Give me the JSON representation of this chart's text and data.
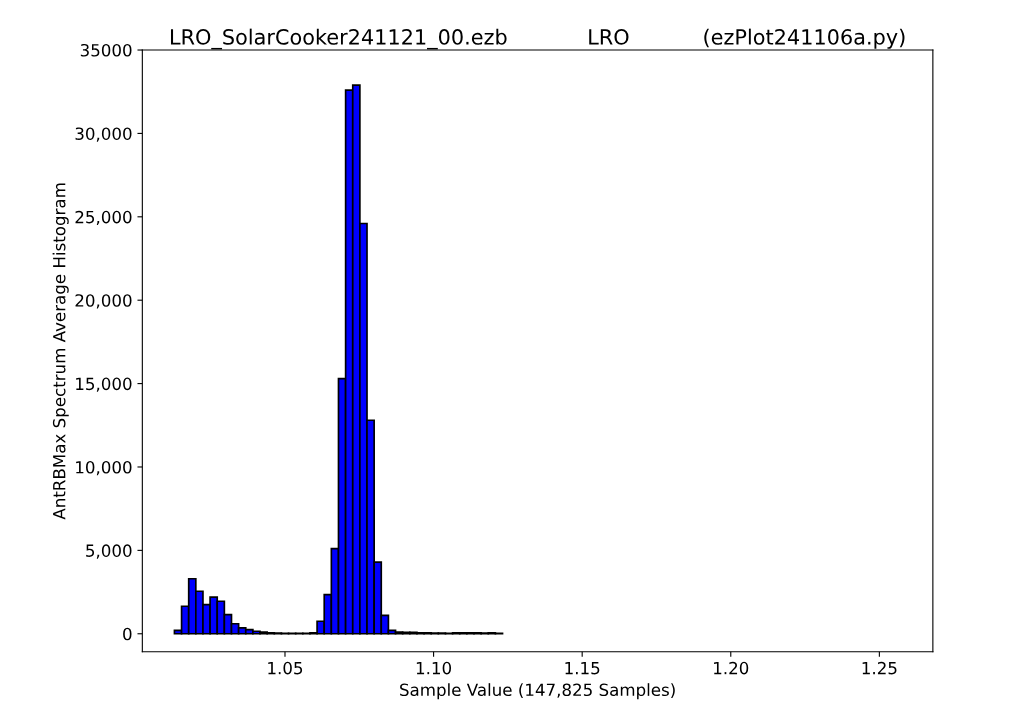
{
  "chart_data": {
    "type": "histogram",
    "title": "LRO_SolarCooker241121_00.ezb            LRO           (ezPlot241106a.py)",
    "xlabel": "Sample Value (147,825 Samples)",
    "ylabel": "AntRBMax Spectrum Average Histogram",
    "bins": [
      1.0128,
      1.0152,
      1.0176,
      1.02,
      1.0224,
      1.0248,
      1.0272,
      1.0296,
      1.032,
      1.0344,
      1.0368,
      1.0392,
      1.0416,
      1.044,
      1.0464,
      1.0488,
      1.0512,
      1.0536,
      1.056,
      1.0584,
      1.0608,
      1.0632,
      1.0656,
      1.068,
      1.0704,
      1.0728,
      1.0752,
      1.0776,
      1.08,
      1.0824,
      1.0848,
      1.0872,
      1.0896,
      1.092,
      1.0944,
      1.0968,
      1.0992,
      1.1016,
      1.104,
      1.1064,
      1.1088,
      1.1112,
      1.1136,
      1.116,
      1.1184,
      1.1208,
      1.1232,
      1.1256,
      1.128,
      1.1304,
      1.1328,
      1.1352,
      1.1376,
      1.14,
      1.1424,
      1.1448,
      1.1472,
      1.1496,
      1.152,
      1.1544,
      1.1568,
      1.1592,
      1.1616,
      1.164,
      1.1664,
      1.1688,
      1.1712,
      1.1736,
      1.176,
      1.1784,
      1.1808,
      1.1832,
      1.1856,
      1.188,
      1.1904,
      1.1928,
      1.1952,
      1.1976,
      1.2,
      1.2024,
      1.2048,
      1.2072,
      1.2096,
      1.212,
      1.2144,
      1.2168,
      1.2192,
      1.2216,
      1.224,
      1.2264,
      1.2288,
      1.2312,
      1.2336,
      1.236,
      1.2384,
      1.2408,
      1.2432,
      1.2456,
      1.248,
      1.2504,
      1.2528
    ],
    "values": [
      200,
      1650,
      3300,
      2550,
      1750,
      2200,
      1950,
      1150,
      600,
      350,
      250,
      150,
      100,
      50,
      40,
      30,
      20,
      20,
      20,
      50,
      750,
      2350,
      5100,
      15300,
      32600,
      32900,
      24600,
      12800,
      4300,
      1100,
      200,
      100,
      80,
      80,
      60,
      50,
      40,
      40,
      30,
      50,
      60,
      60,
      50,
      40,
      50,
      20,
      0,
      0,
      0,
      0,
      0,
      0,
      0,
      0,
      0,
      0,
      0,
      0,
      0,
      0,
      0,
      0,
      0,
      0,
      0,
      0,
      0,
      0,
      0,
      0,
      0,
      0,
      0,
      0,
      0,
      0,
      0,
      0,
      0,
      0,
      0,
      0,
      0,
      0,
      0,
      0,
      0,
      0,
      0,
      0,
      0,
      0,
      0,
      0,
      0,
      0,
      0,
      0,
      0,
      0
    ],
    "color": "#0000ff",
    "xlim": [
      1.002,
      1.268
    ],
    "xticks": [
      1.05,
      {
        "value": 1.1,
        "label": "1.10"
      },
      1.15,
      {
        "value": 1.2,
        "label": "1.20"
      },
      1.25
    ],
    "ylim": [
      -1080,
      35000
    ],
    "yticks": [
      0,
      {
        "value": 5000,
        "label": "5,000"
      },
      {
        "value": 10000,
        "label": "10,000"
      },
      {
        "value": 15000,
        "label": "15,000"
      },
      {
        "value": 20000,
        "label": "20,000"
      },
      {
        "value": 25000,
        "label": "25,000"
      },
      {
        "value": 30000,
        "label": "30,000"
      },
      35000
    ],
    "grid": false,
    "legend": false
  }
}
